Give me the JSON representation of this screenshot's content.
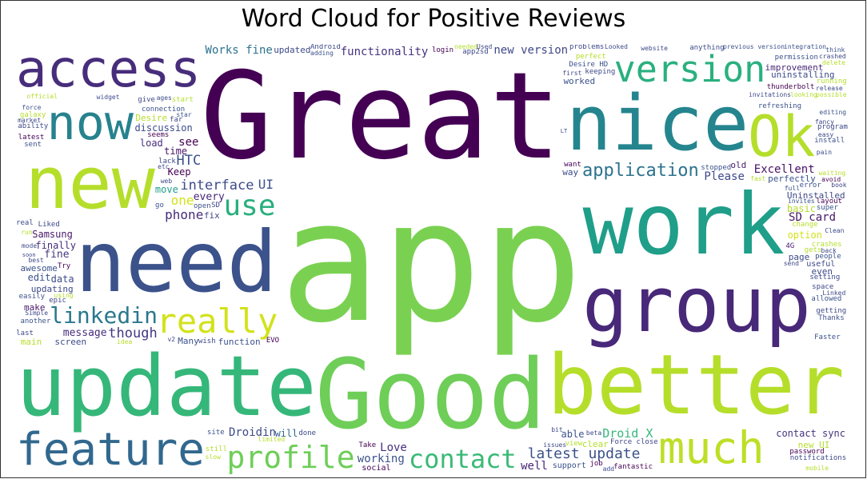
{
  "chart_data": {
    "type": "wordcloud",
    "title": "Word Cloud for Positive Reviews",
    "words": [
      {
        "text": "app",
        "weight": 210,
        "color": "#7ad151"
      },
      {
        "text": "Great",
        "weight": 150,
        "color": "#440154"
      },
      {
        "text": "Good",
        "weight": 120,
        "color": "#6ece58"
      },
      {
        "text": "update",
        "weight": 120,
        "color": "#35b779"
      },
      {
        "text": "work",
        "weight": 105,
        "color": "#1f9e89"
      },
      {
        "text": "need",
        "weight": 105,
        "color": "#3b528b"
      },
      {
        "text": "better",
        "weight": 105,
        "color": "#b5de2b"
      },
      {
        "text": "nice",
        "weight": 95,
        "color": "#25858e"
      },
      {
        "text": "group",
        "weight": 95,
        "color": "#482878"
      },
      {
        "text": "new",
        "weight": 90,
        "color": "#b5de2b"
      },
      {
        "text": "feature",
        "weight": 80,
        "color": "#31688e"
      },
      {
        "text": "access",
        "weight": 70,
        "color": "#472d7b"
      },
      {
        "text": "Ok",
        "weight": 70,
        "color": "#b5de2b"
      },
      {
        "text": "now",
        "weight": 60,
        "color": "#26828e"
      },
      {
        "text": "much",
        "weight": 55,
        "color": "#bddf26"
      },
      {
        "text": "version",
        "weight": 45,
        "color": "#2ab07f"
      },
      {
        "text": "really",
        "weight": 42,
        "color": "#d2e21b"
      },
      {
        "text": "profile",
        "weight": 38,
        "color": "#6ece58"
      },
      {
        "text": "use",
        "weight": 36,
        "color": "#29af7f"
      },
      {
        "text": "contact",
        "weight": 32,
        "color": "#3aba76"
      },
      {
        "text": "linkedin",
        "weight": 28,
        "color": "#2a788e"
      },
      {
        "text": "application",
        "weight": 22,
        "color": "#2c728e"
      },
      {
        "text": "latest update",
        "weight": 18,
        "color": "#3b528b"
      },
      {
        "text": "interface",
        "weight": 17,
        "color": "#3e4a89"
      },
      {
        "text": "HTC",
        "weight": 17,
        "color": "#3b528b"
      },
      {
        "text": "though",
        "weight": 17,
        "color": "#443983"
      },
      {
        "text": "UI",
        "weight": 16,
        "color": "#3b528b"
      },
      {
        "text": "phone",
        "weight": 16,
        "color": "#472c7a"
      },
      {
        "text": "one",
        "weight": 16,
        "color": "#d2e21b"
      },
      {
        "text": "Droid X",
        "weight": 15,
        "color": "#35b779"
      },
      {
        "text": "Please",
        "weight": 14,
        "color": "#3e4989"
      },
      {
        "text": "functionality",
        "weight": 14,
        "color": "#46327e"
      },
      {
        "text": "Love",
        "weight": 14,
        "color": "#46307e"
      },
      {
        "text": "new version",
        "weight": 14,
        "color": "#3f4889"
      },
      {
        "text": "Works fine",
        "weight": 14,
        "color": "#2c728e"
      },
      {
        "text": "Excellent",
        "weight": 14,
        "color": "#471063"
      },
      {
        "text": "Droidin",
        "weight": 14,
        "color": "#3e4a89"
      },
      {
        "text": "well",
        "weight": 14,
        "color": "#482475"
      },
      {
        "text": "SD card",
        "weight": 14,
        "color": "#481769"
      },
      {
        "text": "working",
        "weight": 14,
        "color": "#3b528b"
      },
      {
        "text": "see",
        "weight": 14,
        "color": "#440154"
      },
      {
        "text": "every",
        "weight": 13,
        "color": "#482878"
      },
      {
        "text": "fine",
        "weight": 13,
        "color": "#443983"
      },
      {
        "text": "message",
        "weight": 13,
        "color": "#472d7b"
      },
      {
        "text": "will",
        "weight": 12,
        "color": "#31688e"
      },
      {
        "text": "move",
        "weight": 12,
        "color": "#1f9e89"
      },
      {
        "text": "discussion",
        "weight": 12,
        "color": "#3e4a89"
      },
      {
        "text": "able",
        "weight": 12,
        "color": "#3b528b"
      },
      {
        "text": "data",
        "weight": 12,
        "color": "#3e4a89"
      },
      {
        "text": "time",
        "weight": 12,
        "color": "#471063"
      },
      {
        "text": "edit",
        "weight": 12,
        "color": "#3b528b"
      },
      {
        "text": "option",
        "weight": 12,
        "color": "#d2e21b"
      },
      {
        "text": "finally",
        "weight": 12,
        "color": "#472d7b"
      },
      {
        "text": "basic",
        "weight": 12,
        "color": "#b5de2b"
      },
      {
        "text": "Keep",
        "weight": 12,
        "color": "#440154"
      },
      {
        "text": "contact sync",
        "weight": 12,
        "color": "#46337f"
      },
      {
        "text": "load",
        "weight": 12,
        "color": "#472d7b"
      },
      {
        "text": "Samsung",
        "weight": 12,
        "color": "#48186a"
      },
      {
        "text": "fix",
        "weight": 11,
        "color": "#3e4989"
      },
      {
        "text": "updated",
        "weight": 11,
        "color": "#3e4989"
      },
      {
        "text": "function",
        "weight": 11,
        "color": "#3b528b"
      },
      {
        "text": "uninstalling",
        "weight": 11,
        "color": "#3e4a89"
      },
      {
        "text": "improvement",
        "weight": 11,
        "color": "#482878"
      },
      {
        "text": "Uninstalled",
        "weight": 11,
        "color": "#3e4989"
      },
      {
        "text": "old",
        "weight": 11,
        "color": "#48186a"
      },
      {
        "text": "Many",
        "weight": 11,
        "color": "#3b528b"
      },
      {
        "text": "worked",
        "weight": 11,
        "color": "#3b528b"
      },
      {
        "text": "Desire",
        "weight": 11,
        "color": "#b5de2b"
      },
      {
        "text": "page",
        "weight": 11,
        "color": "#3e4a89"
      },
      {
        "text": "screen",
        "weight": 11,
        "color": "#3e4a89"
      },
      {
        "text": "way",
        "weight": 11,
        "color": "#3e4989"
      },
      {
        "text": "main",
        "weight": 11,
        "color": "#b5de2b"
      },
      {
        "text": "even",
        "weight": 11,
        "color": "#3e4989"
      },
      {
        "text": "make",
        "weight": 11,
        "color": "#48186a"
      },
      {
        "text": "updating",
        "weight": 11,
        "color": "#3e4989"
      },
      {
        "text": "perfectly",
        "weight": 11,
        "color": "#3b528b"
      },
      {
        "text": "new UI",
        "weight": 11,
        "color": "#b5de2b"
      },
      {
        "text": "awesome",
        "weight": 11,
        "color": "#3b528b"
      },
      {
        "text": "clear",
        "weight": 11,
        "color": "#b5de2b"
      },
      {
        "text": "social",
        "weight": 10,
        "color": "#440154"
      },
      {
        "text": "useful",
        "weight": 10,
        "color": "#3e4989"
      },
      {
        "text": "support",
        "weight": 10,
        "color": "#3b528b"
      },
      {
        "text": "connection",
        "weight": 9,
        "color": "#3b528b"
      },
      {
        "text": "thunderbolt",
        "weight": 9,
        "color": "#440154"
      },
      {
        "text": "Desire HD",
        "weight": 9,
        "color": "#3b528b"
      },
      {
        "text": "want",
        "weight": 9,
        "color": "#440154"
      },
      {
        "text": "wish",
        "weight": 9,
        "color": "#3e4989"
      },
      {
        "text": "fantastic",
        "weight": 9,
        "color": "#440154"
      },
      {
        "text": "refreshing",
        "weight": 9,
        "color": "#3b528b"
      },
      {
        "text": "space",
        "weight": 9,
        "color": "#3e4989"
      },
      {
        "text": "go",
        "weight": 9,
        "color": "#3b528b"
      },
      {
        "text": "Faster",
        "weight": 9,
        "color": "#3b528b"
      },
      {
        "text": "4G",
        "weight": 9,
        "color": "#48186a"
      },
      {
        "text": "Force close",
        "weight": 9,
        "color": "#3e4989"
      },
      {
        "text": "give",
        "weight": 9,
        "color": "#3e4989"
      },
      {
        "text": "EVO",
        "weight": 9,
        "color": "#440154"
      },
      {
        "text": "app2sd",
        "weight": 9,
        "color": "#3e4989"
      },
      {
        "text": "stopped",
        "weight": 9,
        "color": "#3b528b"
      },
      {
        "text": "far",
        "weight": 9,
        "color": "#3e4989"
      },
      {
        "text": "crashes",
        "weight": 9,
        "color": "#b5de2b"
      },
      {
        "text": "Try",
        "weight": 9,
        "color": "#440154"
      },
      {
        "text": "Liked",
        "weight": 9,
        "color": "#3e4a89"
      },
      {
        "text": "people",
        "weight": 9,
        "color": "#3b528b"
      },
      {
        "text": "install",
        "weight": 9,
        "color": "#3b528b"
      },
      {
        "text": "site",
        "weight": 9,
        "color": "#3b528b"
      },
      {
        "text": "Take",
        "weight": 9,
        "color": "#440154"
      },
      {
        "text": "getting",
        "weight": 9,
        "color": "#3e4989"
      },
      {
        "text": "Android",
        "weight": 9,
        "color": "#3e4989"
      },
      {
        "text": "start",
        "weight": 9,
        "color": "#b5de2b"
      },
      {
        "text": "latest",
        "weight": 9,
        "color": "#440154"
      },
      {
        "text": "layout",
        "weight": 9,
        "color": "#440154"
      },
      {
        "text": "epic",
        "weight": 9,
        "color": "#3e4989"
      },
      {
        "text": "error",
        "weight": 9,
        "color": "#3b528b"
      },
      {
        "text": "setting",
        "weight": 9,
        "color": "#3e4989"
      },
      {
        "text": "done",
        "weight": 9,
        "color": "#3e4989"
      },
      {
        "text": "last",
        "weight": 9,
        "color": "#3e4989"
      },
      {
        "text": "SD",
        "weight": 9,
        "color": "#3e4989"
      },
      {
        "text": "change",
        "weight": 9,
        "color": "#b5de2b"
      },
      {
        "text": "seems",
        "weight": 9,
        "color": "#440154"
      },
      {
        "text": "anything",
        "weight": 9,
        "color": "#3e4989"
      },
      {
        "text": "password",
        "weight": 9,
        "color": "#440154"
      },
      {
        "text": "Thanks",
        "weight": 9,
        "color": "#3b528b"
      },
      {
        "text": "program",
        "weight": 9,
        "color": "#3e4989"
      },
      {
        "text": "easily",
        "weight": 9,
        "color": "#3b528b"
      },
      {
        "text": "real",
        "weight": 9,
        "color": "#3e4989"
      },
      {
        "text": "notifications",
        "weight": 9,
        "color": "#3e4989"
      },
      {
        "text": "keeping",
        "weight": 9,
        "color": "#3e4989"
      },
      {
        "text": "job",
        "weight": 9,
        "color": "#440154"
      },
      {
        "text": "gets",
        "weight": 9,
        "color": "#b5de2b"
      },
      {
        "text": "permission",
        "weight": 9,
        "color": "#3b528b"
      },
      {
        "text": "view",
        "weight": 9,
        "color": "#b5de2b"
      },
      {
        "text": "allowed",
        "weight": 9,
        "color": "#3b528b"
      },
      {
        "text": "sent",
        "weight": 9,
        "color": "#3b528b"
      },
      {
        "text": "ability",
        "weight": 9,
        "color": "#3e4989"
      },
      {
        "text": "login",
        "weight": 9,
        "color": "#440154"
      },
      {
        "text": "perfect",
        "weight": 9,
        "color": "#b5de2b"
      },
      {
        "text": "another",
        "weight": 9,
        "color": "#3b528b"
      },
      {
        "text": "problems",
        "weight": 9,
        "color": "#3e4989"
      },
      {
        "text": "running",
        "weight": 9,
        "color": "#b5de2b"
      },
      {
        "text": "lack",
        "weight": 9,
        "color": "#3e4989"
      },
      {
        "text": "super",
        "weight": 9,
        "color": "#3b528b"
      },
      {
        "text": "open",
        "weight": 9,
        "color": "#3b528b"
      },
      {
        "text": "full",
        "weight": 8,
        "color": "#3b528b"
      },
      {
        "text": "etc",
        "weight": 8,
        "color": "#3e4989"
      },
      {
        "text": "still",
        "weight": 9,
        "color": "#b5de2b"
      },
      {
        "text": "limited",
        "weight": 8,
        "color": "#b5de2b"
      },
      {
        "text": "Linked",
        "weight": 8,
        "color": "#3e4989"
      },
      {
        "text": "galaxy",
        "weight": 9,
        "color": "#b5de2b"
      },
      {
        "text": "web",
        "weight": 8,
        "color": "#3e4989"
      },
      {
        "text": "back",
        "weight": 8,
        "color": "#3e4989"
      },
      {
        "text": "fast",
        "weight": 8,
        "color": "#b5de2b"
      },
      {
        "text": "mobile",
        "weight": 8,
        "color": "#b5de2b"
      },
      {
        "text": "needed",
        "weight": 8,
        "color": "#b5de2b"
      },
      {
        "text": "website",
        "weight": 8,
        "color": "#3e4989"
      },
      {
        "text": "invites",
        "weight": 8,
        "color": "#3b528b"
      },
      {
        "text": "editing",
        "weight": 8,
        "color": "#3b528b"
      },
      {
        "text": "using",
        "weight": 8,
        "color": "#b5de2b"
      },
      {
        "text": "force",
        "weight": 8,
        "color": "#3b528b"
      },
      {
        "text": "previous version",
        "weight": 8,
        "color": "#3b528b"
      },
      {
        "text": "fancy",
        "weight": 8,
        "color": "#3e4989"
      },
      {
        "text": "integration",
        "weight": 8,
        "color": "#3b528b"
      },
      {
        "text": "avoid",
        "weight": 8,
        "color": "#440154"
      },
      {
        "text": "best",
        "weight": 8,
        "color": "#3e4989"
      },
      {
        "text": "first",
        "weight": 8,
        "color": "#3e4989"
      },
      {
        "text": "think",
        "weight": 8,
        "color": "#3b528b"
      },
      {
        "text": "widget",
        "weight": 8,
        "color": "#3e4989"
      },
      {
        "text": "v2",
        "weight": 8,
        "color": "#3e4989"
      },
      {
        "text": "issues",
        "weight": 8,
        "color": "#3e4989"
      },
      {
        "text": "Looked",
        "weight": 8,
        "color": "#3e4989"
      },
      {
        "text": "Clean",
        "weight": 8,
        "color": "#3e4989"
      },
      {
        "text": "send",
        "weight": 8,
        "color": "#3e4989"
      },
      {
        "text": "slow",
        "weight": 8,
        "color": "#b5de2b"
      },
      {
        "text": "mode",
        "weight": 8,
        "color": "#3e4989"
      },
      {
        "text": "ages",
        "weight": 8,
        "color": "#3e4989"
      },
      {
        "text": "adding",
        "weight": 8,
        "color": "#3b528b"
      },
      {
        "text": "waiting",
        "weight": 8,
        "color": "#b5de2b"
      },
      {
        "text": "official",
        "weight": 8,
        "color": "#b5de2b"
      },
      {
        "text": "pain",
        "weight": 8,
        "color": "#3e4989"
      },
      {
        "text": "bit",
        "weight": 8,
        "color": "#3e4989"
      },
      {
        "text": "crashed",
        "weight": 8,
        "color": "#3e4989"
      },
      {
        "text": "delete",
        "weight": 8,
        "color": "#b5de2b"
      },
      {
        "text": "Simple",
        "weight": 8,
        "color": "#3e4989"
      },
      {
        "text": "add",
        "weight": 8,
        "color": "#3e4989"
      },
      {
        "text": "release",
        "weight": 8,
        "color": "#3e4989"
      },
      {
        "text": "run",
        "weight": 8,
        "color": "#b5de2b"
      },
      {
        "text": "invitations",
        "weight": 8,
        "color": "#3e4989"
      },
      {
        "text": "easy",
        "weight": 8,
        "color": "#3e4989"
      },
      {
        "text": "looking",
        "weight": 8,
        "color": "#b5de2b"
      },
      {
        "text": "beta",
        "weight": 8,
        "color": "#3e4989"
      },
      {
        "text": "market",
        "weight": 8,
        "color": "#3e4989"
      },
      {
        "text": "star",
        "weight": 8,
        "color": "#3b528b"
      },
      {
        "text": "idea",
        "weight": 8,
        "color": "#b5de2b"
      },
      {
        "text": "possible",
        "weight": 8,
        "color": "#b5de2b"
      },
      {
        "text": "book",
        "weight": 8,
        "color": "#3e4989"
      },
      {
        "text": "LT",
        "weight": 7,
        "color": "#3e4989"
      },
      {
        "text": "Used",
        "weight": 8,
        "color": "#3e4989"
      },
      {
        "text": "soon",
        "weight": 7,
        "color": "#3e4989"
      }
    ]
  }
}
